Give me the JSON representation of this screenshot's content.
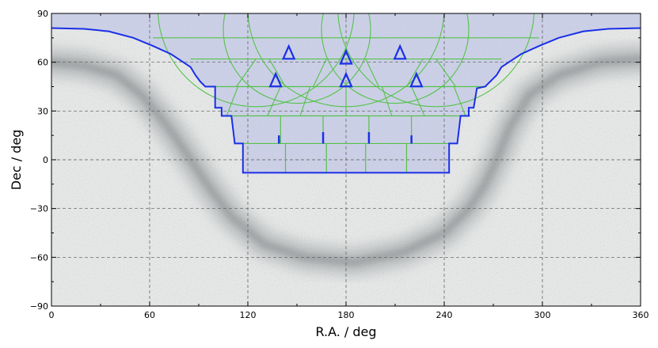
{
  "chart_data": {
    "type": "sky-map",
    "xlabel": "R.A. / deg",
    "ylabel": "Dec / deg",
    "xlim": [
      0,
      360
    ],
    "ylim": [
      -90,
      90
    ],
    "xticks": [
      0,
      60,
      120,
      180,
      240,
      300,
      360
    ],
    "yticks": [
      -90,
      -60,
      -30,
      0,
      30,
      60,
      90
    ],
    "minor_xticks_step": 30,
    "minor_yticks_step": 15,
    "grid": "dashed",
    "background": "grayscale stellar density map (Milky Way band)",
    "footprint_outline": {
      "color": "#1a2fe8",
      "fill": "#b7bde6",
      "points": [
        [
          0,
          81
        ],
        [
          20,
          80.5
        ],
        [
          35,
          79
        ],
        [
          50,
          75
        ],
        [
          62,
          70
        ],
        [
          73,
          65
        ],
        [
          79,
          61
        ],
        [
          85,
          57
        ],
        [
          88,
          52
        ],
        [
          91,
          48
        ],
        [
          94,
          45
        ],
        [
          100,
          45
        ],
        [
          100,
          32
        ],
        [
          104,
          32
        ],
        [
          104,
          27
        ],
        [
          110,
          27
        ],
        [
          112,
          10
        ],
        [
          117,
          10
        ],
        [
          117,
          -8
        ],
        [
          243,
          -8
        ],
        [
          243,
          10
        ],
        [
          248,
          10
        ],
        [
          250,
          27
        ],
        [
          255,
          27
        ],
        [
          255,
          32
        ],
        [
          258,
          32
        ],
        [
          260,
          44
        ],
        [
          265,
          45
        ],
        [
          268,
          48
        ],
        [
          272,
          52
        ],
        [
          275,
          57
        ],
        [
          281,
          61
        ],
        [
          287,
          65
        ],
        [
          298,
          70
        ],
        [
          310,
          75
        ],
        [
          325,
          79
        ],
        [
          340,
          80.5
        ],
        [
          360,
          81
        ]
      ]
    },
    "tile_grid": {
      "color": "#55c24a",
      "dec_rows": [
        {
          "dec": 10,
          "ra_min": 112,
          "ra_max": 248
        },
        {
          "dec": 27,
          "ra_min": 104,
          "ra_max": 256
        },
        {
          "dec": 45,
          "ra_min": 94,
          "ra_max": 266
        },
        {
          "dec": 62,
          "ra_min": 85,
          "ra_max": 275
        },
        {
          "dec": 75,
          "ra_min": 62,
          "ra_max": 298
        }
      ],
      "vertical_lines": [
        {
          "ra": 143,
          "dec_min": -8,
          "dec_max": 10
        },
        {
          "ra": 168,
          "dec_min": -8,
          "dec_max": 10
        },
        {
          "ra": 192,
          "dec_min": -8,
          "dec_max": 10
        },
        {
          "ra": 217,
          "dec_min": -8,
          "dec_max": 10
        },
        {
          "ra": 140,
          "dec_min": 10,
          "dec_max": 27
        },
        {
          "ra": 166,
          "dec_min": 10,
          "dec_max": 27
        },
        {
          "ra": 194,
          "dec_min": 10,
          "dec_max": 27
        },
        {
          "ra": 220,
          "dec_min": 10,
          "dec_max": 27
        }
      ],
      "arcs": [
        {
          "center_ra": 125,
          "center_dec": 93,
          "radius_ra": 60,
          "radius_dec": 30
        },
        {
          "center_ra": 180,
          "center_dec": 93,
          "radius_ra": 60,
          "radius_dec": 30
        },
        {
          "center_ra": 235,
          "center_dec": 93,
          "radius_ra": 60,
          "radius_dec": 30
        },
        {
          "center_ra": 150,
          "center_dec": 80,
          "radius_ra": 45,
          "radius_dec": 24
        },
        {
          "center_ra": 210,
          "center_dec": 80,
          "radius_ra": 45,
          "radius_dec": 24
        }
      ],
      "connectors": [
        [
          [
            113,
            45
          ],
          [
            125,
            62
          ]
        ],
        [
          [
            143,
            45
          ],
          [
            133,
            62
          ]
        ],
        [
          [
            160,
            45
          ],
          [
            168,
            62
          ]
        ],
        [
          [
            200,
            45
          ],
          [
            192,
            62
          ]
        ],
        [
          [
            217,
            45
          ],
          [
            227,
            62
          ]
        ],
        [
          [
            247,
            45
          ],
          [
            235,
            62
          ]
        ],
        [
          [
            107,
            27
          ],
          [
            114,
            45
          ]
        ],
        [
          [
            132,
            27
          ],
          [
            140,
            45
          ]
        ],
        [
          [
            152,
            27
          ],
          [
            158,
            45
          ]
        ],
        [
          [
            180,
            27
          ],
          [
            180,
            45
          ]
        ],
        [
          [
            208,
            27
          ],
          [
            202,
            45
          ]
        ],
        [
          [
            228,
            27
          ],
          [
            220,
            45
          ]
        ],
        [
          [
            253,
            27
          ],
          [
            246,
            45
          ]
        ]
      ]
    },
    "triangles": [
      {
        "ra": 137,
        "dec": 49
      },
      {
        "ra": 180,
        "dec": 49
      },
      {
        "ra": 223,
        "dec": 49
      },
      {
        "ra": 145,
        "dec": 66
      },
      {
        "ra": 180,
        "dec": 63
      },
      {
        "ra": 213,
        "dec": 66
      }
    ],
    "segments": [
      {
        "ra": 139,
        "dec_min": 10,
        "dec_max": 15
      },
      {
        "ra": 166,
        "dec_min": 10,
        "dec_max": 17
      },
      {
        "ra": 194,
        "dec_min": 10,
        "dec_max": 17
      },
      {
        "ra": 220,
        "dec_min": 10,
        "dec_max": 15
      }
    ]
  }
}
